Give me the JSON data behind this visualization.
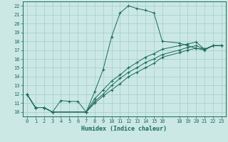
{
  "xlabel": "Humidex (Indice chaleur)",
  "bg_color": "#cce8e4",
  "grid_color": "#9ecfca",
  "line_color": "#1a6b5a",
  "xlim": [
    -0.5,
    23.5
  ],
  "ylim": [
    9.5,
    22.5
  ],
  "xticks": [
    0,
    1,
    2,
    3,
    4,
    5,
    6,
    7,
    8,
    9,
    10,
    11,
    12,
    13,
    14,
    15,
    16,
    18,
    19,
    20,
    21,
    22,
    23
  ],
  "yticks": [
    10,
    11,
    12,
    13,
    14,
    15,
    16,
    17,
    18,
    19,
    20,
    21,
    22
  ],
  "series1_x": [
    0,
    1,
    2,
    3,
    4,
    5,
    6,
    7,
    8,
    9,
    10,
    11,
    12,
    13,
    14,
    15,
    16,
    18,
    19,
    20,
    21,
    22,
    23
  ],
  "series1_y": [
    12,
    10.5,
    10.5,
    10,
    11.3,
    11.2,
    11.2,
    10,
    12.3,
    14.8,
    18.5,
    21.2,
    22,
    21.7,
    21.5,
    21.2,
    18,
    17.8,
    17.5,
    17.2,
    17.0,
    17.5,
    17.5
  ],
  "series1_markers_x": [
    0,
    1,
    2,
    3,
    7,
    8,
    9,
    10,
    11,
    12,
    13,
    14,
    15,
    16,
    18,
    19,
    20,
    21,
    22,
    23
  ],
  "series2_x": [
    0,
    1,
    2,
    3,
    7,
    8,
    9,
    10,
    11,
    12,
    13,
    14,
    15,
    16,
    18,
    19,
    20,
    21,
    22,
    23
  ],
  "series2_y": [
    12,
    10.5,
    10.5,
    10,
    10,
    11.5,
    12.5,
    13.5,
    14.2,
    15.0,
    15.6,
    16.2,
    16.6,
    17.1,
    17.5,
    17.7,
    17.9,
    17.1,
    17.5,
    17.5
  ],
  "series3_x": [
    0,
    1,
    2,
    3,
    7,
    8,
    9,
    10,
    11,
    12,
    13,
    14,
    15,
    16,
    18,
    19,
    20,
    21,
    22,
    23
  ],
  "series3_y": [
    12,
    10.5,
    10.5,
    10,
    10,
    11.2,
    12.0,
    13.0,
    13.8,
    14.5,
    15.0,
    15.6,
    16.0,
    16.5,
    17.0,
    17.3,
    17.5,
    17.1,
    17.5,
    17.5
  ],
  "series4_x": [
    0,
    1,
    2,
    3,
    7,
    8,
    9,
    10,
    11,
    12,
    13,
    14,
    15,
    16,
    18,
    19,
    20,
    21,
    22,
    23
  ],
  "series4_y": [
    12,
    10.5,
    10.5,
    10,
    10,
    11.0,
    11.8,
    12.5,
    13.2,
    14.0,
    14.5,
    15.0,
    15.5,
    16.2,
    16.7,
    17.0,
    17.2,
    17.1,
    17.5,
    17.5
  ]
}
